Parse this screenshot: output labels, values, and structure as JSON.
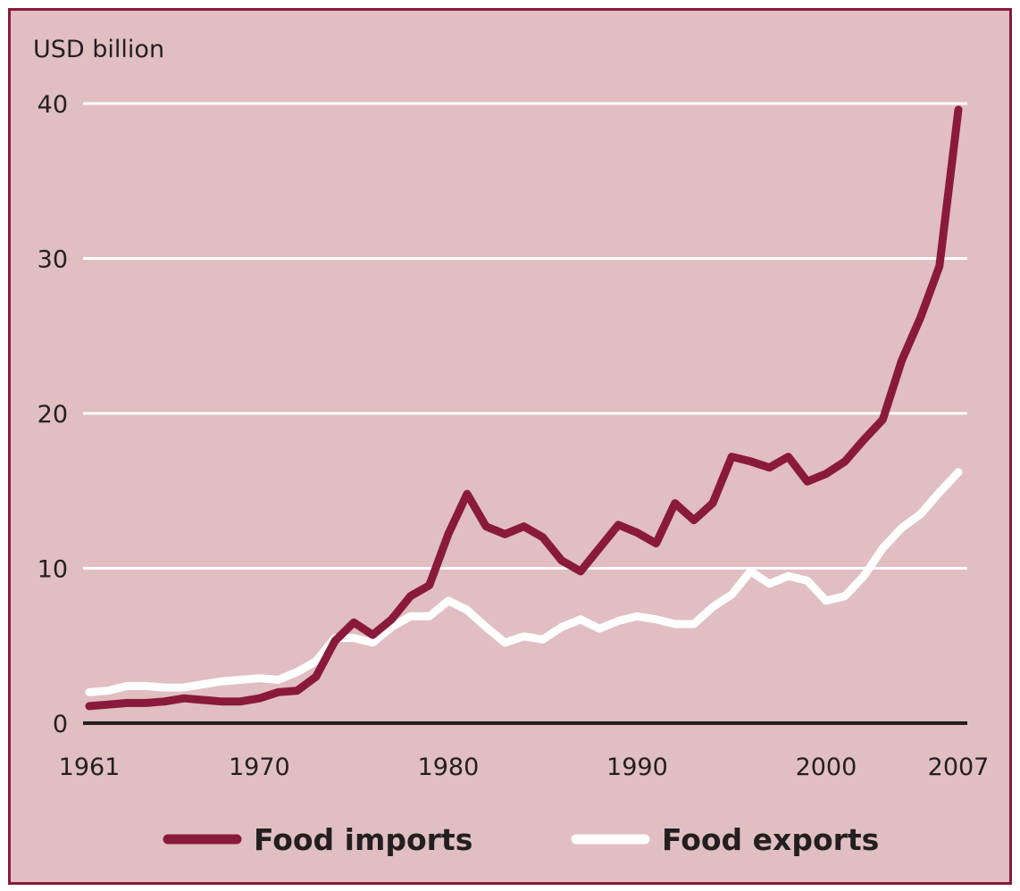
{
  "chart_data": {
    "type": "line",
    "title": "",
    "ylabel": "USD billion",
    "xlabel": "",
    "ylim": [
      0,
      40
    ],
    "xlim": [
      1961,
      2007
    ],
    "grid": true,
    "legend_position": "bottom",
    "y_ticks": [
      0,
      10,
      20,
      30,
      40
    ],
    "y_tick_labels": [
      "0",
      "10",
      "20",
      "30",
      "40"
    ],
    "x_ticks": [
      1961,
      1970,
      1980,
      1990,
      2000,
      2007
    ],
    "x_tick_labels": [
      "1961",
      "1970",
      "1980",
      "1990",
      "2000",
      "2007"
    ],
    "x": [
      1961,
      1962,
      1963,
      1964,
      1965,
      1966,
      1967,
      1968,
      1969,
      1970,
      1971,
      1972,
      1973,
      1974,
      1975,
      1976,
      1977,
      1978,
      1979,
      1980,
      1981,
      1982,
      1983,
      1984,
      1985,
      1986,
      1987,
      1988,
      1989,
      1990,
      1991,
      1992,
      1993,
      1994,
      1995,
      1996,
      1997,
      1998,
      1999,
      2000,
      2001,
      2002,
      2003,
      2004,
      2005,
      2006,
      2007
    ],
    "series": [
      {
        "name": "Food imports",
        "color": "#8a1a3c",
        "values": [
          1.1,
          1.2,
          1.3,
          1.3,
          1.4,
          1.6,
          1.5,
          1.4,
          1.4,
          1.6,
          2.0,
          2.1,
          3.0,
          5.3,
          6.5,
          5.7,
          6.7,
          8.2,
          8.9,
          12.2,
          14.8,
          12.7,
          12.2,
          12.7,
          12.0,
          10.5,
          9.8,
          11.3,
          12.8,
          12.3,
          11.6,
          14.2,
          13.1,
          14.2,
          17.2,
          16.9,
          16.5,
          17.2,
          15.6,
          16.1,
          16.9,
          18.3,
          19.6,
          23.4,
          26.2,
          29.5,
          39.6
        ]
      },
      {
        "name": "Food exports",
        "color": "#ffffff",
        "values": [
          2.0,
          2.1,
          2.4,
          2.4,
          2.3,
          2.3,
          2.5,
          2.7,
          2.8,
          2.9,
          2.8,
          3.3,
          4.0,
          5.5,
          5.5,
          5.2,
          6.2,
          6.9,
          6.9,
          7.9,
          7.3,
          6.2,
          5.2,
          5.6,
          5.4,
          6.2,
          6.7,
          6.1,
          6.6,
          6.9,
          6.7,
          6.4,
          6.4,
          7.5,
          8.3,
          9.8,
          9.0,
          9.5,
          9.2,
          7.9,
          8.2,
          9.5,
          11.3,
          12.6,
          13.5,
          14.9,
          16.2
        ]
      }
    ]
  },
  "colors": {
    "background": "#e0bec2",
    "frame": "#8a1a3c",
    "gridline": "#ffffff",
    "axis": "#231f20"
  }
}
